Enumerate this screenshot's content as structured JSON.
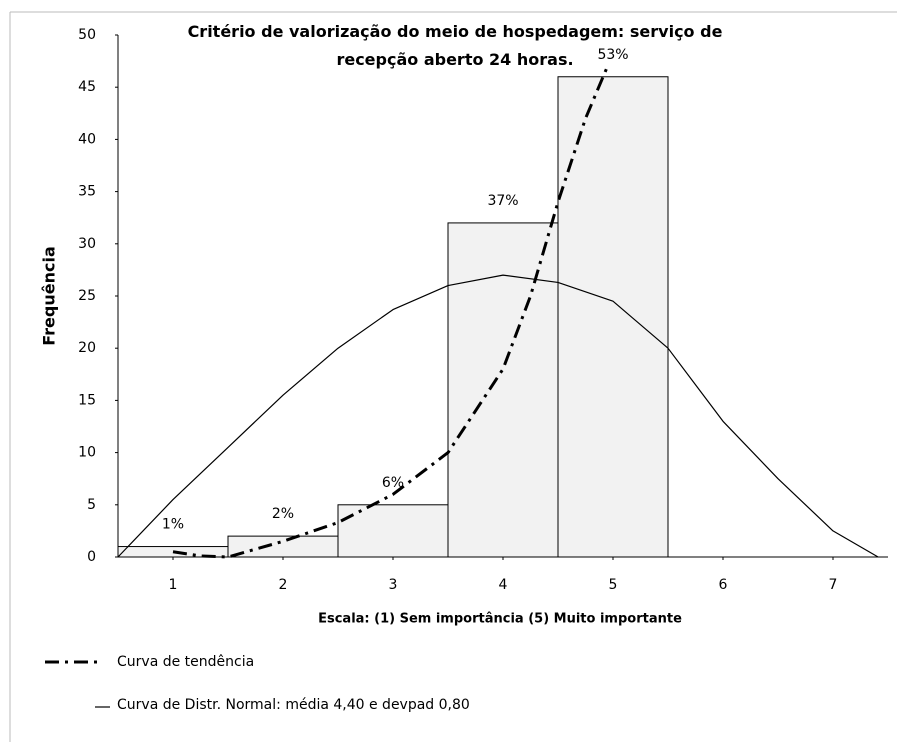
{
  "chart_data": {
    "type": "histogram",
    "title": "Critério de valorização do meio de hospedagem: serviço de recepção aberto 24 horas.",
    "xlabel": "Escala:  (1) Sem importância  (5) Muito importante",
    "ylabel": "Frequência",
    "bins": [
      0.5,
      1.5,
      2.5,
      3.5,
      4.5,
      5.5
    ],
    "counts": [
      1,
      2,
      5,
      32,
      46
    ],
    "value_labels": [
      "1%",
      "2%",
      "6%",
      "37%",
      "53%"
    ],
    "bar_color": "#f2f2f2",
    "xlim": [
      0.5,
      7.5
    ],
    "xticks": [
      1,
      2,
      3,
      4,
      5,
      6,
      7
    ],
    "ylim": [
      0,
      50
    ],
    "yticks": [
      0,
      5,
      10,
      15,
      20,
      25,
      30,
      35,
      40,
      45,
      50
    ],
    "series": [
      {
        "name": "Curva de tendência",
        "color": "#000000",
        "style": "dashdot",
        "x": [
          1,
          1.25,
          1.5,
          2,
          2.5,
          3,
          3.5,
          4,
          4.25,
          4.5,
          4.75,
          4.95
        ],
        "values": [
          0.5,
          0.1,
          0,
          1.5,
          3.3,
          6,
          10,
          18,
          25,
          34,
          42,
          47
        ]
      },
      {
        "name": "Curva de Distr. Normal: média 4,40 e devpad 0,80",
        "color": "#000000",
        "style": "solid",
        "x": [
          0.5,
          1,
          1.5,
          2,
          2.5,
          3,
          3.5,
          4,
          4.5,
          5,
          5.5,
          6,
          6.5,
          7,
          7.41
        ],
        "values": [
          0,
          5.5,
          10.5,
          15.5,
          20,
          23.7,
          26,
          27,
          26.3,
          24.5,
          20,
          13,
          7.5,
          2.5,
          0
        ]
      }
    ]
  }
}
